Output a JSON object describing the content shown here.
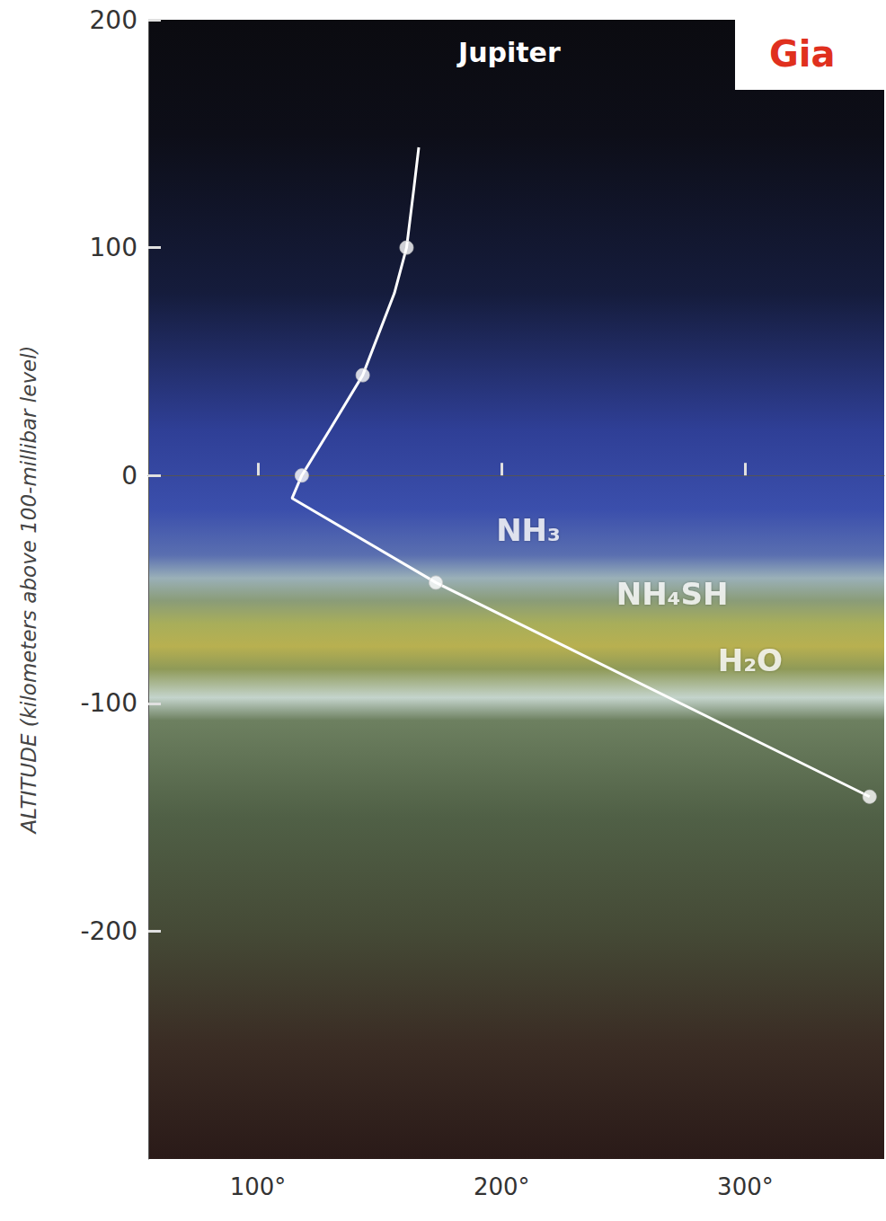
{
  "chart_data": {
    "type": "line",
    "title": "Jupiter",
    "slide_title": "Gia",
    "ylabel": "ALTITUDE (kilometers above 100-millibar level)",
    "xlim": [
      55,
      357
    ],
    "xticks": [
      {
        "value": 100,
        "label": "100°"
      },
      {
        "value": 200,
        "label": "200°"
      },
      {
        "value": 300,
        "label": "300°"
      }
    ],
    "ylim": [
      -300,
      200
    ],
    "yticks": [
      -200,
      -100,
      0,
      100,
      200
    ],
    "grid": false,
    "series": [
      {
        "type": "line",
        "color": "#ffffff",
        "marker": "none",
        "line_style": "solid",
        "x": [
          166,
          164,
          161,
          156,
          143,
          130,
          118,
          114,
          173,
          351
        ],
        "values": [
          144,
          126,
          100,
          80,
          44,
          21,
          0,
          -10,
          -47,
          -141
        ]
      },
      {
        "type": "scatter",
        "color": "#ffffff",
        "marker": "circle",
        "x": [
          161,
          143,
          118,
          173,
          351
        ],
        "values": [
          100,
          44,
          0,
          -47,
          -141
        ]
      }
    ],
    "annotations": [
      {
        "text": "NH₃",
        "x": 211,
        "y": -24
      },
      {
        "text": "NH₄SH",
        "x": 270,
        "y": -52
      },
      {
        "text": "H₂O",
        "x": 302,
        "y": -81
      }
    ]
  }
}
